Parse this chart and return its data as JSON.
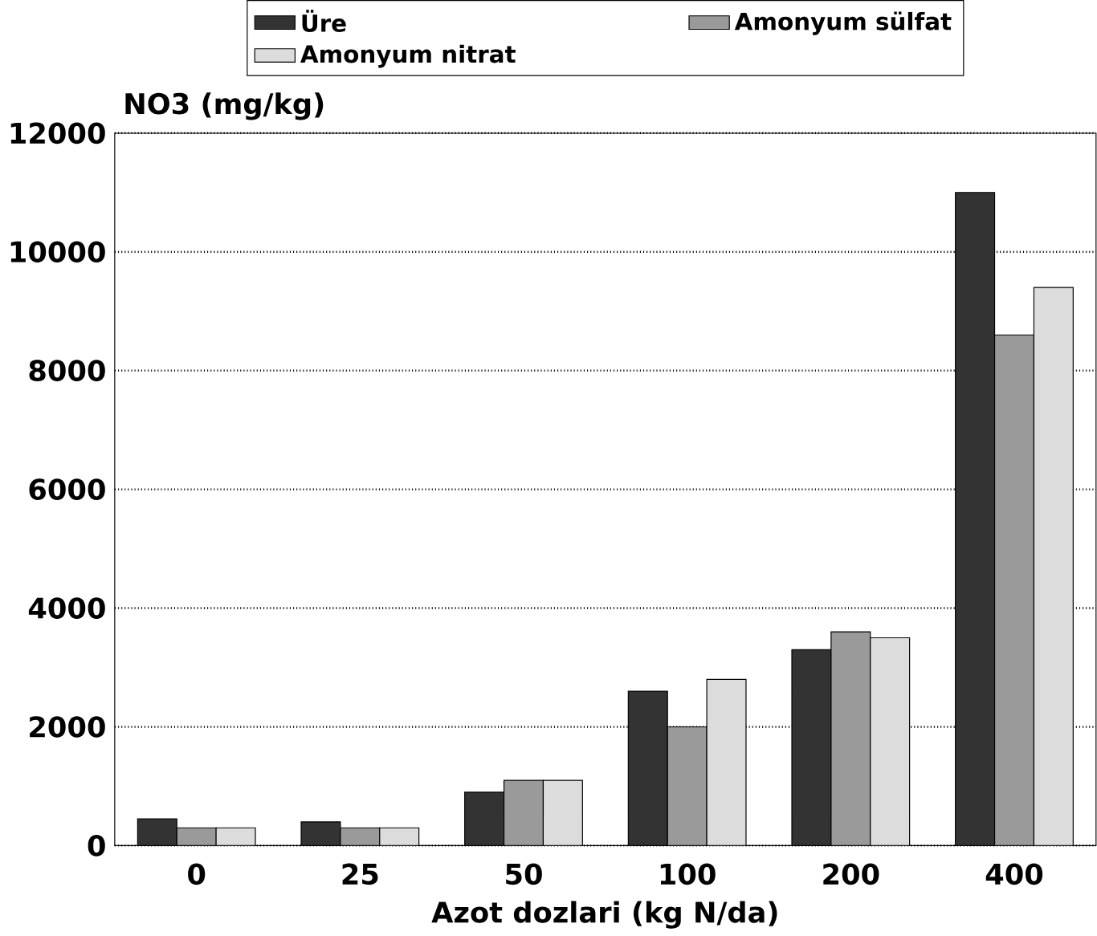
{
  "chart_data": {
    "type": "bar",
    "ylabel": "NO3 (mg/kg)",
    "xlabel": "Azot dozlari (kg N/da)",
    "categories": [
      "0",
      "25",
      "50",
      "100",
      "200",
      "400"
    ],
    "series": [
      {
        "name": "Üre",
        "color": "#333333",
        "values": [
          450,
          400,
          900,
          2600,
          3300,
          11000
        ]
      },
      {
        "name": "Amonyum sülfat",
        "color": "#9a9a9a",
        "values": [
          300,
          300,
          1100,
          2000,
          3600,
          8600
        ]
      },
      {
        "name": "Amonyum nitrat",
        "color": "#dcdcdc",
        "values": [
          300,
          300,
          1100,
          2800,
          3500,
          9400
        ]
      }
    ],
    "ylim": [
      0,
      12000
    ],
    "yticks": [
      0,
      2000,
      4000,
      6000,
      8000,
      10000,
      12000
    ],
    "grid": "y",
    "legend": "top"
  }
}
